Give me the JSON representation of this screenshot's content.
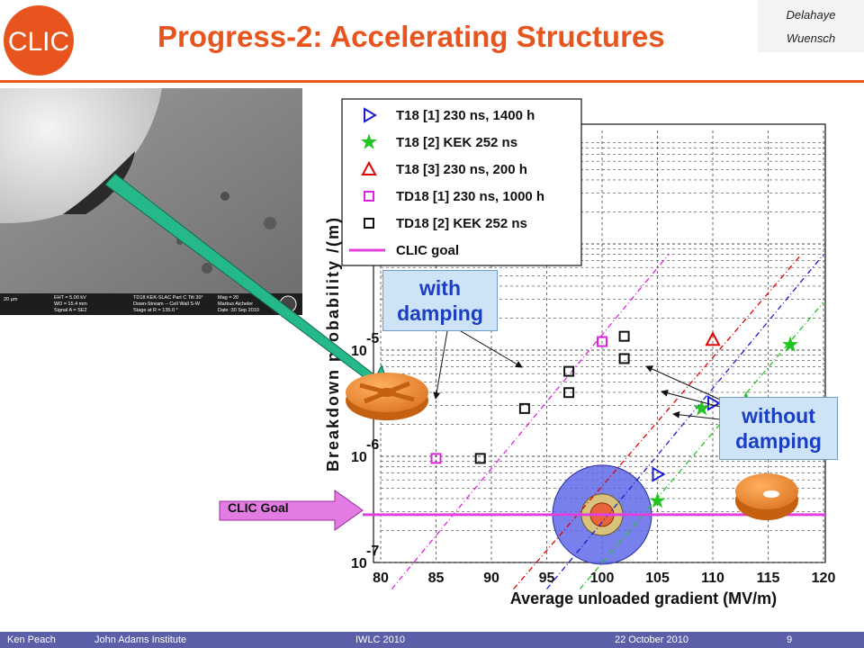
{
  "slide": {
    "title": "Progress-2: Accelerating Structures",
    "authors": [
      "Delahaye",
      "Wuensch"
    ],
    "logo_text": "CLIC"
  },
  "footer": {
    "presenter": "Ken Peach",
    "institute": "John Adams Institute",
    "event": "IWLC 2010",
    "date": "22 October 2010",
    "page": "9"
  },
  "sem_image": {
    "scalebar": "20 µm",
    "info_lines": [
      "EHT = 5.00 kV",
      "WD = 15.4 mm",
      "Signal A = SE2",
      "TD18 KEK-SLAC Part C Tilt 30°",
      "Down-Stream -- Cell Wall S-W",
      "Stage at R = 135.0 °",
      "Mag = 20",
      "Markus Aicheler",
      "Date :30 Sep 2010"
    ]
  },
  "callouts": {
    "with_damping": [
      "with",
      "damping"
    ],
    "without_damping": [
      "without",
      "damping"
    ],
    "clic_goal_arrow": "CLIC Goal"
  },
  "colors": {
    "title": "#e8541e",
    "blue": "#1c1cd6",
    "green": "#22c422",
    "red": "#e00000",
    "magenta": "#e020e0",
    "black": "#111111",
    "clic_goal": "#e040e0"
  },
  "chart_data": {
    "type": "scatter",
    "xlabel": "Average unloaded gradient (MV/m)",
    "ylabel": "Breakdown probability /(m)",
    "xlim": [
      80,
      120
    ],
    "ylim_log10": [
      -7,
      -4
    ],
    "x_ticks": [
      "80",
      "85",
      "90",
      "95",
      "100",
      "105",
      "110",
      "115",
      "120"
    ],
    "y_ticks": [
      {
        "base": "10",
        "exp": "-7",
        "value": -7
      },
      {
        "base": "10",
        "exp": "-6",
        "value": -6
      },
      {
        "base": "10",
        "exp": "-5",
        "value": -5
      }
    ],
    "grid": true,
    "log_y": true,
    "legend_position": "top-left",
    "series": [
      {
        "name": "T18 [1] 230 ns, 1400 h",
        "marker": "triangle-right",
        "color": "#1c1cd6",
        "points": [
          [
            105,
            -6.17
          ],
          [
            110,
            -5.5
          ]
        ],
        "fit": [
          [
            95,
            -7.25
          ],
          [
            120,
            -4.1
          ]
        ]
      },
      {
        "name": "T18 [2] KEK 252 ns",
        "marker": "star",
        "color": "#22c422",
        "points": [
          [
            105,
            -6.42
          ],
          [
            109,
            -5.55
          ],
          [
            113,
            -5.47
          ],
          [
            117,
            -4.95
          ]
        ],
        "fit": [
          [
            98,
            -7.25
          ],
          [
            120,
            -4.55
          ]
        ]
      },
      {
        "name": "T18 [3] 230 ns, 200 h",
        "marker": "triangle-up",
        "color": "#e00000",
        "points": [
          [
            110,
            -4.9
          ]
        ],
        "fit": [
          [
            92,
            -7.25
          ],
          [
            118,
            -4.1
          ]
        ]
      },
      {
        "name": "TD18 [1] 230 ns, 1000 h",
        "marker": "square",
        "color": "#e020e0",
        "points": [
          [
            85,
            -6.02
          ],
          [
            100,
            -4.92
          ]
        ],
        "fit": [
          [
            81,
            -7.25
          ],
          [
            106,
            -4.1
          ]
        ]
      },
      {
        "name": "TD18 [2] KEK 252 ns",
        "marker": "square",
        "color": "#111111",
        "points": [
          [
            89,
            -6.02
          ],
          [
            93,
            -5.55
          ],
          [
            97,
            -5.2
          ],
          [
            97,
            -5.4
          ],
          [
            102,
            -4.87
          ],
          [
            102,
            -5.08
          ]
        ]
      }
    ],
    "clic_goal": {
      "name": "CLIC goal",
      "value_log10": -6.55,
      "color": "#e040e0"
    }
  }
}
